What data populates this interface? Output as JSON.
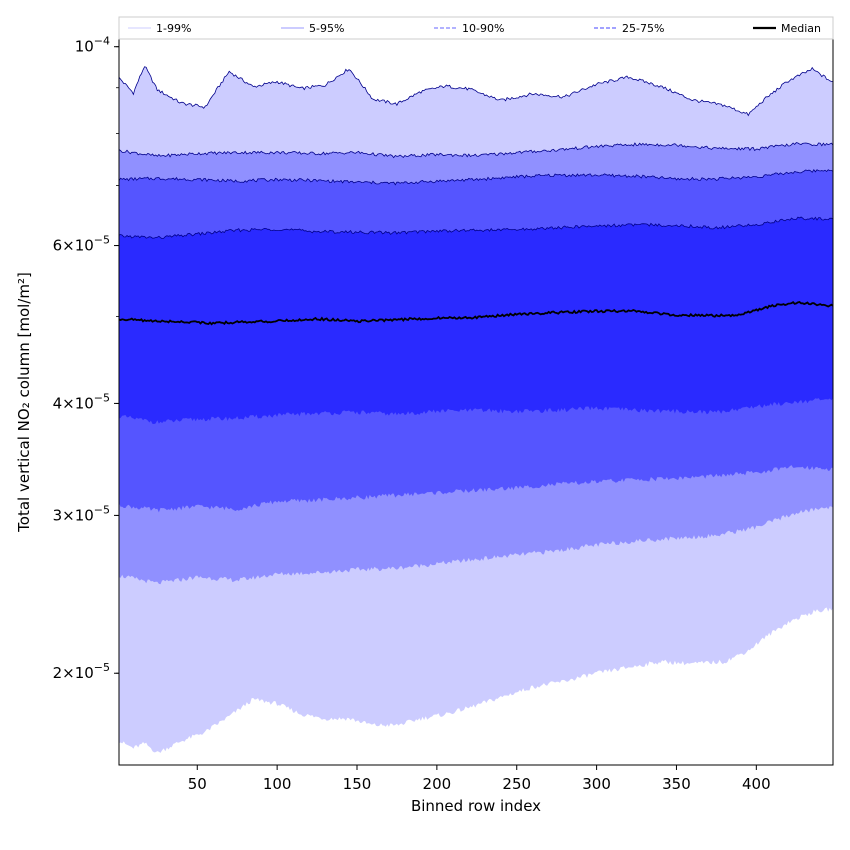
{
  "chart_data": {
    "type": "area",
    "xlabel": "Binned row index",
    "ylabel": "Total vertical NO₂ column [mol/m²]",
    "x_scale": "linear",
    "y_scale": "log",
    "xlim": [
      1,
      448
    ],
    "ylim": [
      1.58e-05,
      0.000102
    ],
    "x_ticks": [
      50,
      100,
      150,
      200,
      250,
      300,
      350,
      400
    ],
    "x_tick_labels": [
      "50",
      "100",
      "150",
      "200",
      "250",
      "300",
      "350",
      "400"
    ],
    "y_ticks": [
      {
        "value": 0.0001,
        "mantissa": "",
        "exponent": "−4"
      },
      {
        "value": 6e-05,
        "mantissa": "6",
        "exponent": "−5"
      },
      {
        "value": 4e-05,
        "mantissa": "4",
        "exponent": "−5"
      },
      {
        "value": 3e-05,
        "mantissa": "3",
        "exponent": "−5"
      },
      {
        "value": 2e-05,
        "mantissa": "2",
        "exponent": "−5"
      }
    ],
    "grid": false,
    "legend_position": "top",
    "bands": [
      {
        "name": "1-99%",
        "fill": "#ccccff",
        "line_color": "#ccccff",
        "line_style": "solid",
        "x": [
          1,
          10,
          17,
          25,
          40,
          55,
          70,
          85,
          100,
          115,
          130,
          145,
          160,
          175,
          190,
          205,
          220,
          240,
          260,
          280,
          300,
          320,
          340,
          360,
          380,
          395,
          405,
          420,
          435,
          448
        ],
        "lower": [
          1.68e-05,
          1.65e-05,
          1.67e-05,
          1.63e-05,
          1.68e-05,
          1.72e-05,
          1.79e-05,
          1.87e-05,
          1.85e-05,
          1.8e-05,
          1.78e-05,
          1.78e-05,
          1.75e-05,
          1.75e-05,
          1.78e-05,
          1.8e-05,
          1.83e-05,
          1.88e-05,
          1.93e-05,
          1.96e-05,
          2e-05,
          2.03e-05,
          2.06e-05,
          2.05e-05,
          2.06e-05,
          2.12e-05,
          2.19e-05,
          2.28e-05,
          2.34e-05,
          2.36e-05
        ],
        "upper": [
          9.23e-05,
          8.88e-05,
          9.52e-05,
          8.95e-05,
          8.65e-05,
          8.56e-05,
          9.38e-05,
          9.02e-05,
          9.14e-05,
          8.98e-05,
          9.06e-05,
          9.45e-05,
          8.74e-05,
          8.63e-05,
          8.91e-05,
          9.04e-05,
          8.97e-05,
          8.71e-05,
          8.86e-05,
          8.79e-05,
          9.08e-05,
          9.25e-05,
          9.03e-05,
          8.72e-05,
          8.6e-05,
          8.4e-05,
          8.73e-05,
          9.16e-05,
          9.44e-05,
          9.12e-05
        ]
      },
      {
        "name": "5-95%",
        "fill": "#9090ff",
        "line_color": "#9999ff",
        "line_style": "solid",
        "x": [
          1,
          25,
          50,
          75,
          100,
          125,
          150,
          175,
          200,
          225,
          250,
          275,
          300,
          325,
          350,
          375,
          400,
          425,
          448
        ],
        "lower": [
          2.57e-05,
          2.52e-05,
          2.56e-05,
          2.54e-05,
          2.58e-05,
          2.59e-05,
          2.61e-05,
          2.62e-05,
          2.65e-05,
          2.68e-05,
          2.71e-05,
          2.74e-05,
          2.78e-05,
          2.81e-05,
          2.83e-05,
          2.85e-05,
          2.91e-05,
          3.02e-05,
          3.07e-05
        ],
        "upper": [
          7.66e-05,
          7.55e-05,
          7.6e-05,
          7.62e-05,
          7.62e-05,
          7.6e-05,
          7.62e-05,
          7.54e-05,
          7.58e-05,
          7.56e-05,
          7.62e-05,
          7.67e-05,
          7.74e-05,
          7.78e-05,
          7.77e-05,
          7.7e-05,
          7.69e-05,
          7.79e-05,
          7.78e-05
        ]
      },
      {
        "name": "10-90%",
        "fill": "#5555ff",
        "line_color": "#6666ff",
        "line_style": "dashed",
        "x": [
          1,
          25,
          50,
          75,
          100,
          125,
          150,
          175,
          200,
          225,
          250,
          275,
          300,
          325,
          350,
          375,
          400,
          425,
          448
        ],
        "lower": [
          3.08e-05,
          3.04e-05,
          3.07e-05,
          3.05e-05,
          3.11e-05,
          3.12e-05,
          3.14e-05,
          3.16e-05,
          3.18e-05,
          3.2e-05,
          3.22e-05,
          3.25e-05,
          3.27e-05,
          3.29e-05,
          3.3e-05,
          3.32e-05,
          3.35e-05,
          3.4e-05,
          3.38e-05
        ],
        "upper": [
          7.11e-05,
          7.13e-05,
          7.11e-05,
          7.08e-05,
          7.11e-05,
          7.09e-05,
          7.06e-05,
          7.04e-05,
          7.08e-05,
          7.11e-05,
          7.16e-05,
          7.19e-05,
          7.19e-05,
          7.17e-05,
          7.12e-05,
          7.12e-05,
          7.16e-05,
          7.25e-05,
          7.29e-05
        ]
      },
      {
        "name": "25-75%",
        "fill": "#2a2aff",
        "line_color": "#4444ff",
        "line_style": "dashed",
        "x": [
          1,
          25,
          50,
          75,
          100,
          125,
          150,
          175,
          200,
          225,
          250,
          275,
          300,
          325,
          350,
          375,
          400,
          425,
          448
        ],
        "lower": [
          3.87e-05,
          3.81e-05,
          3.84e-05,
          3.85e-05,
          3.88e-05,
          3.9e-05,
          3.91e-05,
          3.89e-05,
          3.92e-05,
          3.93e-05,
          3.92e-05,
          3.93e-05,
          3.95e-05,
          3.93e-05,
          3.92e-05,
          3.91e-05,
          3.97e-05,
          4.02e-05,
          4.04e-05
        ],
        "upper": [
          6.15e-05,
          6.12e-05,
          6.18e-05,
          6.24e-05,
          6.26e-05,
          6.22e-05,
          6.21e-05,
          6.2e-05,
          6.23e-05,
          6.24e-05,
          6.25e-05,
          6.28e-05,
          6.31e-05,
          6.33e-05,
          6.32e-05,
          6.28e-05,
          6.33e-05,
          6.44e-05,
          6.42e-05
        ]
      }
    ],
    "median": {
      "name": "Median",
      "color": "#000000",
      "x": [
        1,
        25,
        50,
        60,
        75,
        100,
        125,
        150,
        175,
        200,
        225,
        250,
        275,
        300,
        325,
        350,
        375,
        390,
        400,
        410,
        425,
        448
      ],
      "y": [
        4.97e-05,
        4.94e-05,
        4.93e-05,
        4.91e-05,
        4.93e-05,
        4.94e-05,
        4.97e-05,
        4.94e-05,
        4.96e-05,
        4.98e-05,
        4.99e-05,
        5.03e-05,
        5.05e-05,
        5.07e-05,
        5.07e-05,
        5.02e-05,
        5.01e-05,
        5.02e-05,
        5.08e-05,
        5.14e-05,
        5.18e-05,
        5.14e-05
      ]
    }
  }
}
